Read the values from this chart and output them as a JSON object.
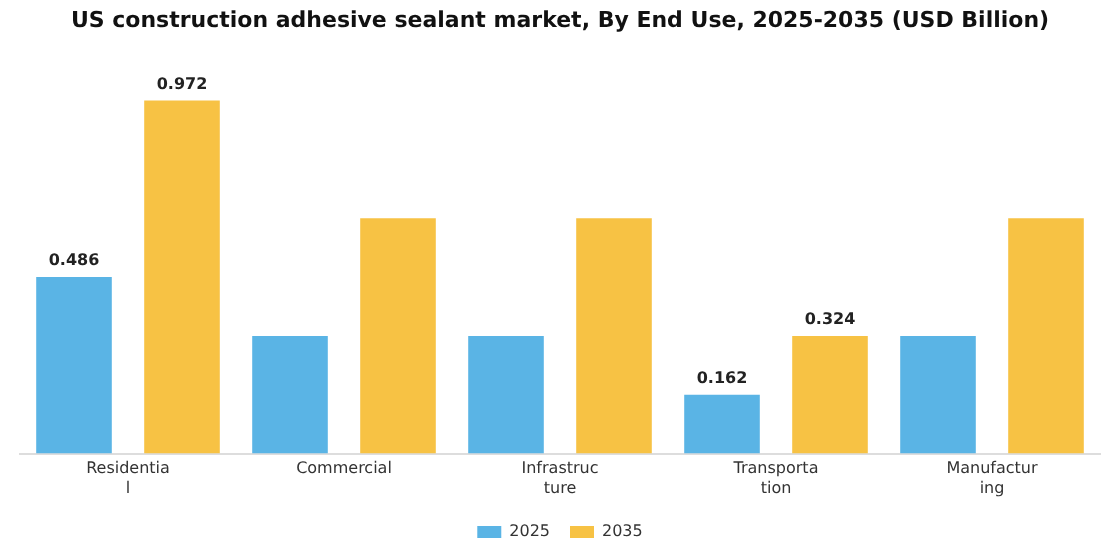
{
  "chart_data": {
    "type": "bar",
    "title": "US construction adhesive sealant market, By End Use, 2025-2035 (USD Billion)",
    "categories": [
      "Residential",
      "Commercial",
      "Infrastructure",
      "Transportation",
      "Manufacturing"
    ],
    "series": [
      {
        "name": "2025",
        "color": "#5ab4e5",
        "values": [
          0.486,
          0.324,
          0.324,
          0.162,
          0.324
        ],
        "value_labels": [
          "0.486",
          null,
          null,
          "0.162",
          null
        ]
      },
      {
        "name": "2035",
        "color": "#f7c244",
        "values": [
          0.972,
          0.648,
          0.648,
          0.324,
          0.648
        ],
        "value_labels": [
          "0.972",
          null,
          null,
          "0.324",
          null
        ]
      }
    ],
    "grid": false,
    "legend": "bottom"
  }
}
